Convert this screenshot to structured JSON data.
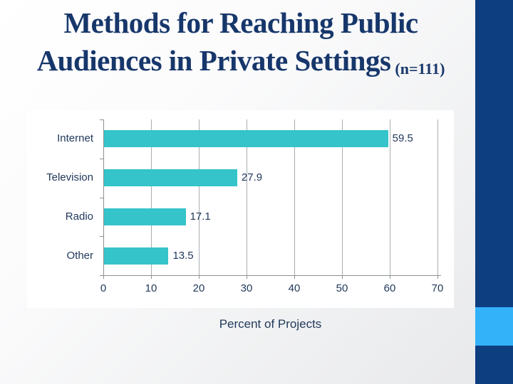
{
  "slide": {
    "title_line1": "Methods for Reaching Public",
    "title_line2": "Audiences in Private Settings",
    "title_suffix": "(n=111)"
  },
  "chart_data": {
    "type": "bar",
    "orientation": "horizontal",
    "title": "Methods for Reaching Public Audiences in Private Settings (n=111)",
    "categories": [
      "Internet",
      "Television",
      "Radio",
      "Other"
    ],
    "values": [
      59.5,
      27.9,
      17.1,
      13.5
    ],
    "value_labels": [
      "59.5",
      "27.9",
      "17.1",
      "13.5"
    ],
    "xlabel": "Percent of Projects",
    "ylabel": "",
    "xlim": [
      0,
      70
    ],
    "xticks": [
      0,
      10,
      20,
      30,
      40,
      50,
      60,
      70
    ],
    "grid": true,
    "legend": false
  },
  "colors": {
    "bar": "#35c4c9",
    "strip": "#0d3e80",
    "accent": "#33b2fa",
    "title_text": "#17376b",
    "chart_text": "#21395c",
    "grid": "#aaadb0",
    "axis": "#8b9094",
    "panel": "#ffffff"
  }
}
